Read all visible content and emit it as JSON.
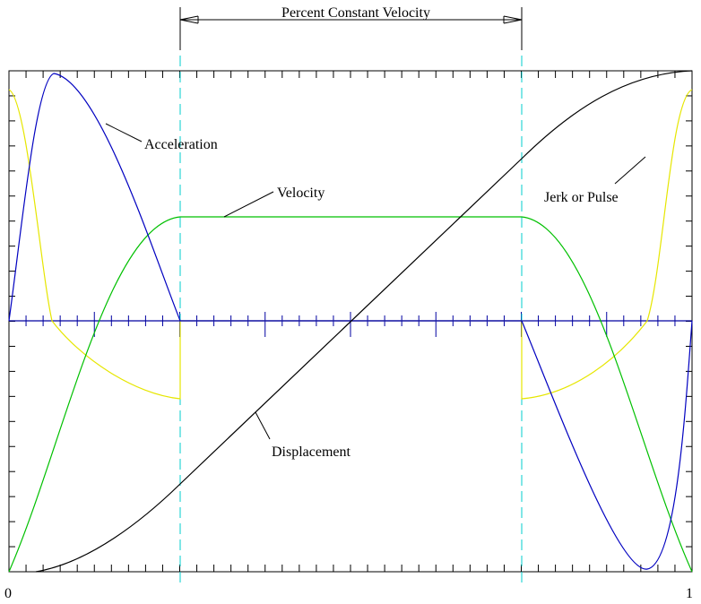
{
  "title": "Percent Constant Velocity",
  "labels": {
    "acceleration": "Acceleration",
    "velocity": "Velocity",
    "jerk": "Jerk or Pulse",
    "displacement": "Displacement"
  },
  "axis": {
    "start": "0",
    "end": "1"
  }
}
